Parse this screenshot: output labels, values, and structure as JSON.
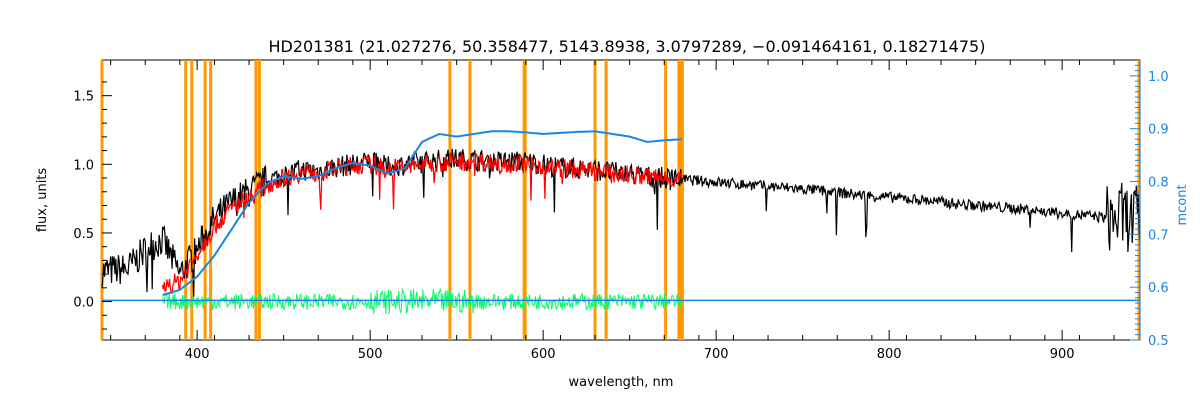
{
  "chart_data": {
    "type": "line",
    "title": "HD201381    (21.027276, 50.358477, 5143.8938, 3.0797289, −0.091464161, 0.18271475)",
    "xlabel": "wavelength, nm",
    "ylabel": "flux, units",
    "y2label": "mcont",
    "xlim": [
      345,
      945
    ],
    "ylim": [
      -0.28,
      1.76
    ],
    "y2lim": [
      0.5,
      1.03
    ],
    "x_ticks": [
      400,
      500,
      600,
      700,
      800,
      900
    ],
    "y_ticks": [
      0.0,
      0.5,
      1.0,
      1.5
    ],
    "y_tick_labels": [
      "0.0",
      "0.5",
      "1.0",
      "1.5"
    ],
    "y2_ticks": [
      0.5,
      0.6,
      0.7,
      0.8,
      0.9,
      1.0
    ],
    "y2_tick_labels": [
      "0.5",
      "0.6",
      "0.7",
      "0.8",
      "0.9",
      "1.0"
    ],
    "grid": false,
    "colors": {
      "observed": "#000000",
      "model": "#ff0000",
      "residual": "#00ff66",
      "continuum": "#1a85e8",
      "masks": "#ff9900"
    },
    "mask_lines": [
      345,
      393.4,
      396.9,
      404.6,
      407.8,
      434.0,
      436.0,
      546.1,
      557.7,
      589.0,
      589.6,
      630.0,
      636.4,
      670.8,
      678.5,
      679.5,
      680.5,
      944.5
    ],
    "series": [
      {
        "role": "observed",
        "x": [
          345,
          360,
          372,
          380,
          390,
          400,
          410,
          420,
          430,
          440,
          450,
          460,
          470,
          480,
          490,
          500,
          510,
          520,
          530,
          540,
          550,
          560,
          570,
          580,
          590,
          600,
          610,
          620,
          630,
          640,
          650,
          660,
          670,
          680,
          700,
          720,
          740,
          760,
          780,
          800,
          820,
          840,
          860,
          880,
          900,
          920,
          930,
          935,
          940,
          945
        ],
        "y": [
          0.22,
          0.24,
          0.4,
          0.45,
          0.2,
          0.38,
          0.6,
          0.72,
          0.8,
          0.88,
          0.92,
          0.96,
          0.95,
          0.98,
          1.0,
          1.02,
          0.98,
          1.0,
          1.02,
          1.03,
          1.04,
          1.03,
          1.02,
          1.02,
          1.02,
          1.0,
          0.98,
          0.97,
          0.96,
          0.94,
          0.93,
          0.91,
          0.9,
          0.89,
          0.87,
          0.85,
          0.83,
          0.81,
          0.78,
          0.76,
          0.74,
          0.71,
          0.69,
          0.67,
          0.64,
          0.62,
          0.6,
          0.62,
          0.6,
          0.6
        ]
      },
      {
        "role": "model",
        "x": [
          380,
          390,
          400,
          410,
          420,
          430,
          440,
          450,
          460,
          470,
          480,
          490,
          500,
          510,
          520,
          530,
          540,
          550,
          560,
          570,
          580,
          590,
          600,
          610,
          620,
          630,
          640,
          650,
          660,
          670,
          680
        ],
        "y": [
          0.1,
          0.15,
          0.35,
          0.55,
          0.68,
          0.76,
          0.85,
          0.9,
          0.94,
          0.94,
          0.97,
          0.99,
          1.0,
          0.97,
          0.98,
          1.0,
          1.01,
          1.02,
          1.02,
          1.01,
          1.01,
          1.0,
          0.99,
          0.97,
          0.96,
          0.95,
          0.93,
          0.92,
          0.91,
          0.9,
          0.89
        ]
      },
      {
        "role": "continuum",
        "x": [
          380,
          390,
          400,
          410,
          420,
          430,
          440,
          450,
          460,
          470,
          480,
          490,
          500,
          510,
          520,
          530,
          540,
          550,
          560,
          570,
          580,
          590,
          600,
          610,
          620,
          630,
          640,
          650,
          660,
          670,
          680
        ],
        "y": [
          0.585,
          0.595,
          0.62,
          0.66,
          0.71,
          0.76,
          0.795,
          0.81,
          0.805,
          0.81,
          0.825,
          0.835,
          0.83,
          0.815,
          0.825,
          0.875,
          0.89,
          0.885,
          0.89,
          0.895,
          0.895,
          0.893,
          0.89,
          0.892,
          0.894,
          0.895,
          0.89,
          0.885,
          0.875,
          0.878,
          0.88
        ]
      },
      {
        "role": "continuum-baseline",
        "x": [
          345,
          945
        ],
        "y2": [
          0.575,
          0.575
        ]
      }
    ],
    "residual": {
      "xlim": [
        380,
        680
      ],
      "amplitude": 0.06
    }
  }
}
